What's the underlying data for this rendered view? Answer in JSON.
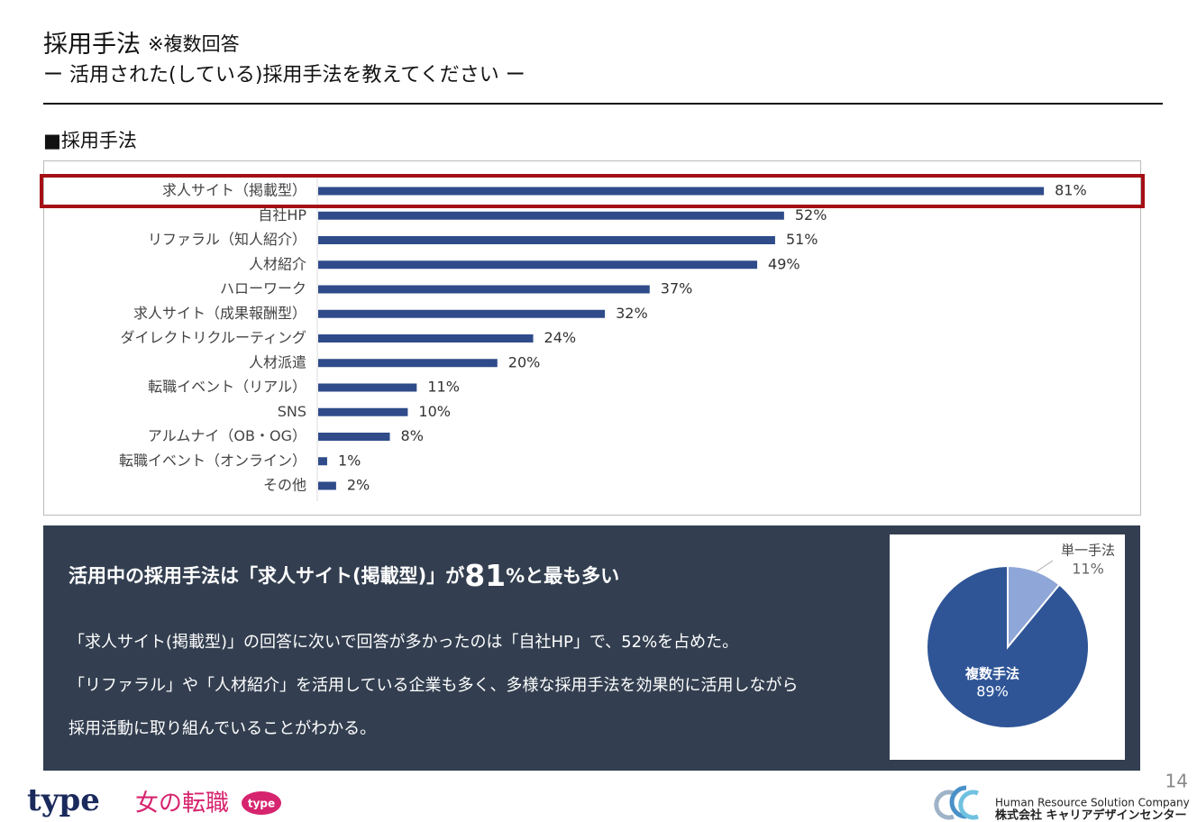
{
  "header": {
    "title": "採用手法",
    "title_note": "※複数回答",
    "subtitle": "ー 活用された(している)採用手法を教えてください ー",
    "section": "■採用手法"
  },
  "chart_data": [
    {
      "type": "bar",
      "orientation": "horizontal",
      "categories": [
        "求人サイト（掲載型）",
        "自社HP",
        "リファラル（知人紹介）",
        "人材紹介",
        "ハローワーク",
        "求人サイト（成果報酬型）",
        "ダイレクトリクルーティング",
        "人材派遣",
        "転職イベント（リアル）",
        "SNS",
        "アルムナイ（OB・OG）",
        "転職イベント（オンライン）",
        "その他"
      ],
      "values": [
        81,
        52,
        51,
        49,
        37,
        32,
        24,
        20,
        11,
        10,
        8,
        1,
        2
      ],
      "value_labels": [
        "81%",
        "52%",
        "51%",
        "49%",
        "37%",
        "32%",
        "24%",
        "20%",
        "11%",
        "10%",
        "8%",
        "1%",
        "2%"
      ],
      "color": "#2f4b8a",
      "highlight_index": 0,
      "highlight_color": "#a50f15"
    },
    {
      "type": "pie",
      "categories": [
        "単一手法",
        "複数手法"
      ],
      "values": [
        11,
        89
      ],
      "value_labels": [
        "11%",
        "89%"
      ],
      "colors": [
        "#8fa6d8",
        "#2f5597"
      ]
    }
  ],
  "summary": {
    "headline": [
      "活用中の採用手法は「求人サイト(掲載型)」が",
      "81",
      "%と最も多い"
    ],
    "lines": [
      "「求人サイト(掲載型)」の回答に次いで回答が多かったのは「自社HP」で、52%を占めた。",
      "「リファラル」や「人材紹介」を活用している企業も多く、多様な採用手法を効果的に活用しながら",
      "採用活動に取り組んでいることがわかる。"
    ]
  },
  "footer": {
    "page": "14",
    "logo_type": "type",
    "logo_onna": "女の転職",
    "logo_badge": "type",
    "company_en": "Human Resource Solution Company",
    "company_ja": "株式会社 キャリアデザインセンター"
  }
}
